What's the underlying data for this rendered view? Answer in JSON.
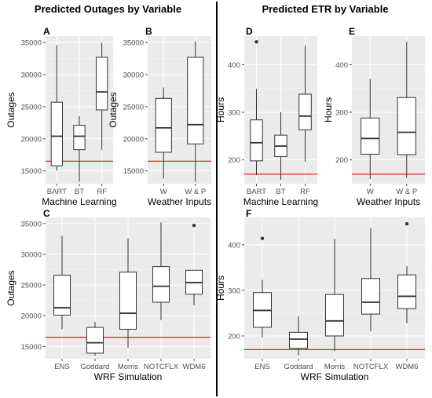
{
  "headings": {
    "left": "Predicted Outages by Variable",
    "right": "Predicted ETR by Variable"
  },
  "colors": {
    "panel_bg": "#ebebeb",
    "grid_major": "#ffffff",
    "box_fill": "#ffffff",
    "box_line": "#333333",
    "ref_line": "#e8231f"
  },
  "chart_data": [
    {
      "id": "A",
      "type": "boxplot",
      "panel_label": "A",
      "xlabel": "Machine Learning",
      "ylabel": "Outages",
      "ylim": [
        13000,
        36000
      ],
      "yticks": [
        15000,
        20000,
        25000,
        30000,
        35000
      ],
      "reference_line": 16500,
      "grid": true,
      "categories": [
        "BART",
        "BT",
        "RF"
      ],
      "boxes": [
        {
          "min": 15000,
          "q1": 15800,
          "median": 20400,
          "q3": 25700,
          "max": 34600,
          "outliers": []
        },
        {
          "min": 13300,
          "q1": 18300,
          "median": 20400,
          "q3": 22100,
          "max": 23500,
          "outliers": []
        },
        {
          "min": 18300,
          "q1": 24500,
          "median": 27300,
          "q3": 32700,
          "max": 35000,
          "outliers": []
        }
      ]
    },
    {
      "id": "B",
      "type": "boxplot",
      "panel_label": "B",
      "xlabel": "Weather Inputs",
      "ylabel": "Outages",
      "ylim": [
        13000,
        36000
      ],
      "yticks": [
        15000,
        20000,
        25000,
        30000,
        35000
      ],
      "reference_line": 16500,
      "grid": true,
      "categories": [
        "W",
        "W & P"
      ],
      "boxes": [
        {
          "min": 13800,
          "q1": 17900,
          "median": 21700,
          "q3": 26300,
          "max": 28000,
          "outliers": []
        },
        {
          "min": 13300,
          "q1": 19200,
          "median": 22200,
          "q3": 32700,
          "max": 35200,
          "outliers": []
        }
      ]
    },
    {
      "id": "D",
      "type": "boxplot",
      "panel_label": "D",
      "xlabel": "Machine Learning",
      "ylabel": "Hours",
      "ylim": [
        150,
        460
      ],
      "yticks": [
        200,
        300,
        400
      ],
      "reference_line": 170,
      "grid": true,
      "categories": [
        "BART",
        "BT",
        "RF"
      ],
      "boxes": [
        {
          "min": 168,
          "q1": 198,
          "median": 236,
          "q3": 284,
          "max": 349,
          "outliers": [
            448
          ]
        },
        {
          "min": 158,
          "q1": 207,
          "median": 229,
          "q3": 252,
          "max": 300,
          "outliers": []
        },
        {
          "min": 196,
          "q1": 263,
          "median": 292,
          "q3": 338,
          "max": 440,
          "outliers": []
        }
      ]
    },
    {
      "id": "E",
      "type": "boxplot",
      "panel_label": "E",
      "xlabel": "Weather Inputs",
      "ylabel": "Hours",
      "ylim": [
        150,
        460
      ],
      "yticks": [
        200,
        300,
        400
      ],
      "reference_line": 170,
      "grid": true,
      "categories": [
        "W",
        "W & P"
      ],
      "boxes": [
        {
          "min": 160,
          "q1": 212,
          "median": 245,
          "q3": 288,
          "max": 370,
          "outliers": []
        },
        {
          "min": 162,
          "q1": 211,
          "median": 258,
          "q3": 331,
          "max": 448,
          "outliers": []
        }
      ]
    },
    {
      "id": "C",
      "type": "boxplot",
      "panel_label": "C",
      "xlabel": "WRF Simulation",
      "ylabel": "Outages",
      "ylim": [
        13000,
        36000
      ],
      "yticks": [
        15000,
        20000,
        25000,
        30000,
        35000
      ],
      "reference_line": 16500,
      "grid": true,
      "categories": [
        "ENS",
        "Goddard",
        "Morris",
        "NOTCFLX",
        "WDM6"
      ],
      "boxes": [
        {
          "min": 17800,
          "q1": 20100,
          "median": 21300,
          "q3": 26600,
          "max": 33000,
          "outliers": []
        },
        {
          "min": 13500,
          "q1": 13900,
          "median": 15600,
          "q3": 18100,
          "max": 19000,
          "outliers": []
        },
        {
          "min": 14800,
          "q1": 17800,
          "median": 20400,
          "q3": 27100,
          "max": 32600,
          "outliers": []
        },
        {
          "min": 19300,
          "q1": 22200,
          "median": 24800,
          "q3": 28000,
          "max": 35200,
          "outliers": []
        },
        {
          "min": 21700,
          "q1": 23500,
          "median": 25400,
          "q3": 27400,
          "max": 27400,
          "outliers": [
            34700
          ]
        }
      ]
    },
    {
      "id": "F",
      "type": "boxplot",
      "panel_label": "F",
      "xlabel": "WRF Simulation",
      "ylabel": "Hours",
      "ylim": [
        150,
        460
      ],
      "yticks": [
        200,
        300,
        400
      ],
      "reference_line": 170,
      "grid": true,
      "categories": [
        "ENS",
        "Goddard",
        "Morris",
        "NOTCFLX",
        "WDM6"
      ],
      "boxes": [
        {
          "min": 197,
          "q1": 219,
          "median": 256,
          "q3": 295,
          "max": 323,
          "outliers": [
            414
          ]
        },
        {
          "min": 158,
          "q1": 173,
          "median": 193,
          "q3": 208,
          "max": 243,
          "outliers": []
        },
        {
          "min": 167,
          "q1": 200,
          "median": 233,
          "q3": 291,
          "max": 413,
          "outliers": []
        },
        {
          "min": 210,
          "q1": 248,
          "median": 274,
          "q3": 326,
          "max": 437,
          "outliers": []
        },
        {
          "min": 228,
          "q1": 260,
          "median": 287,
          "q3": 334,
          "max": 353,
          "outliers": [
            446
          ]
        }
      ]
    }
  ]
}
